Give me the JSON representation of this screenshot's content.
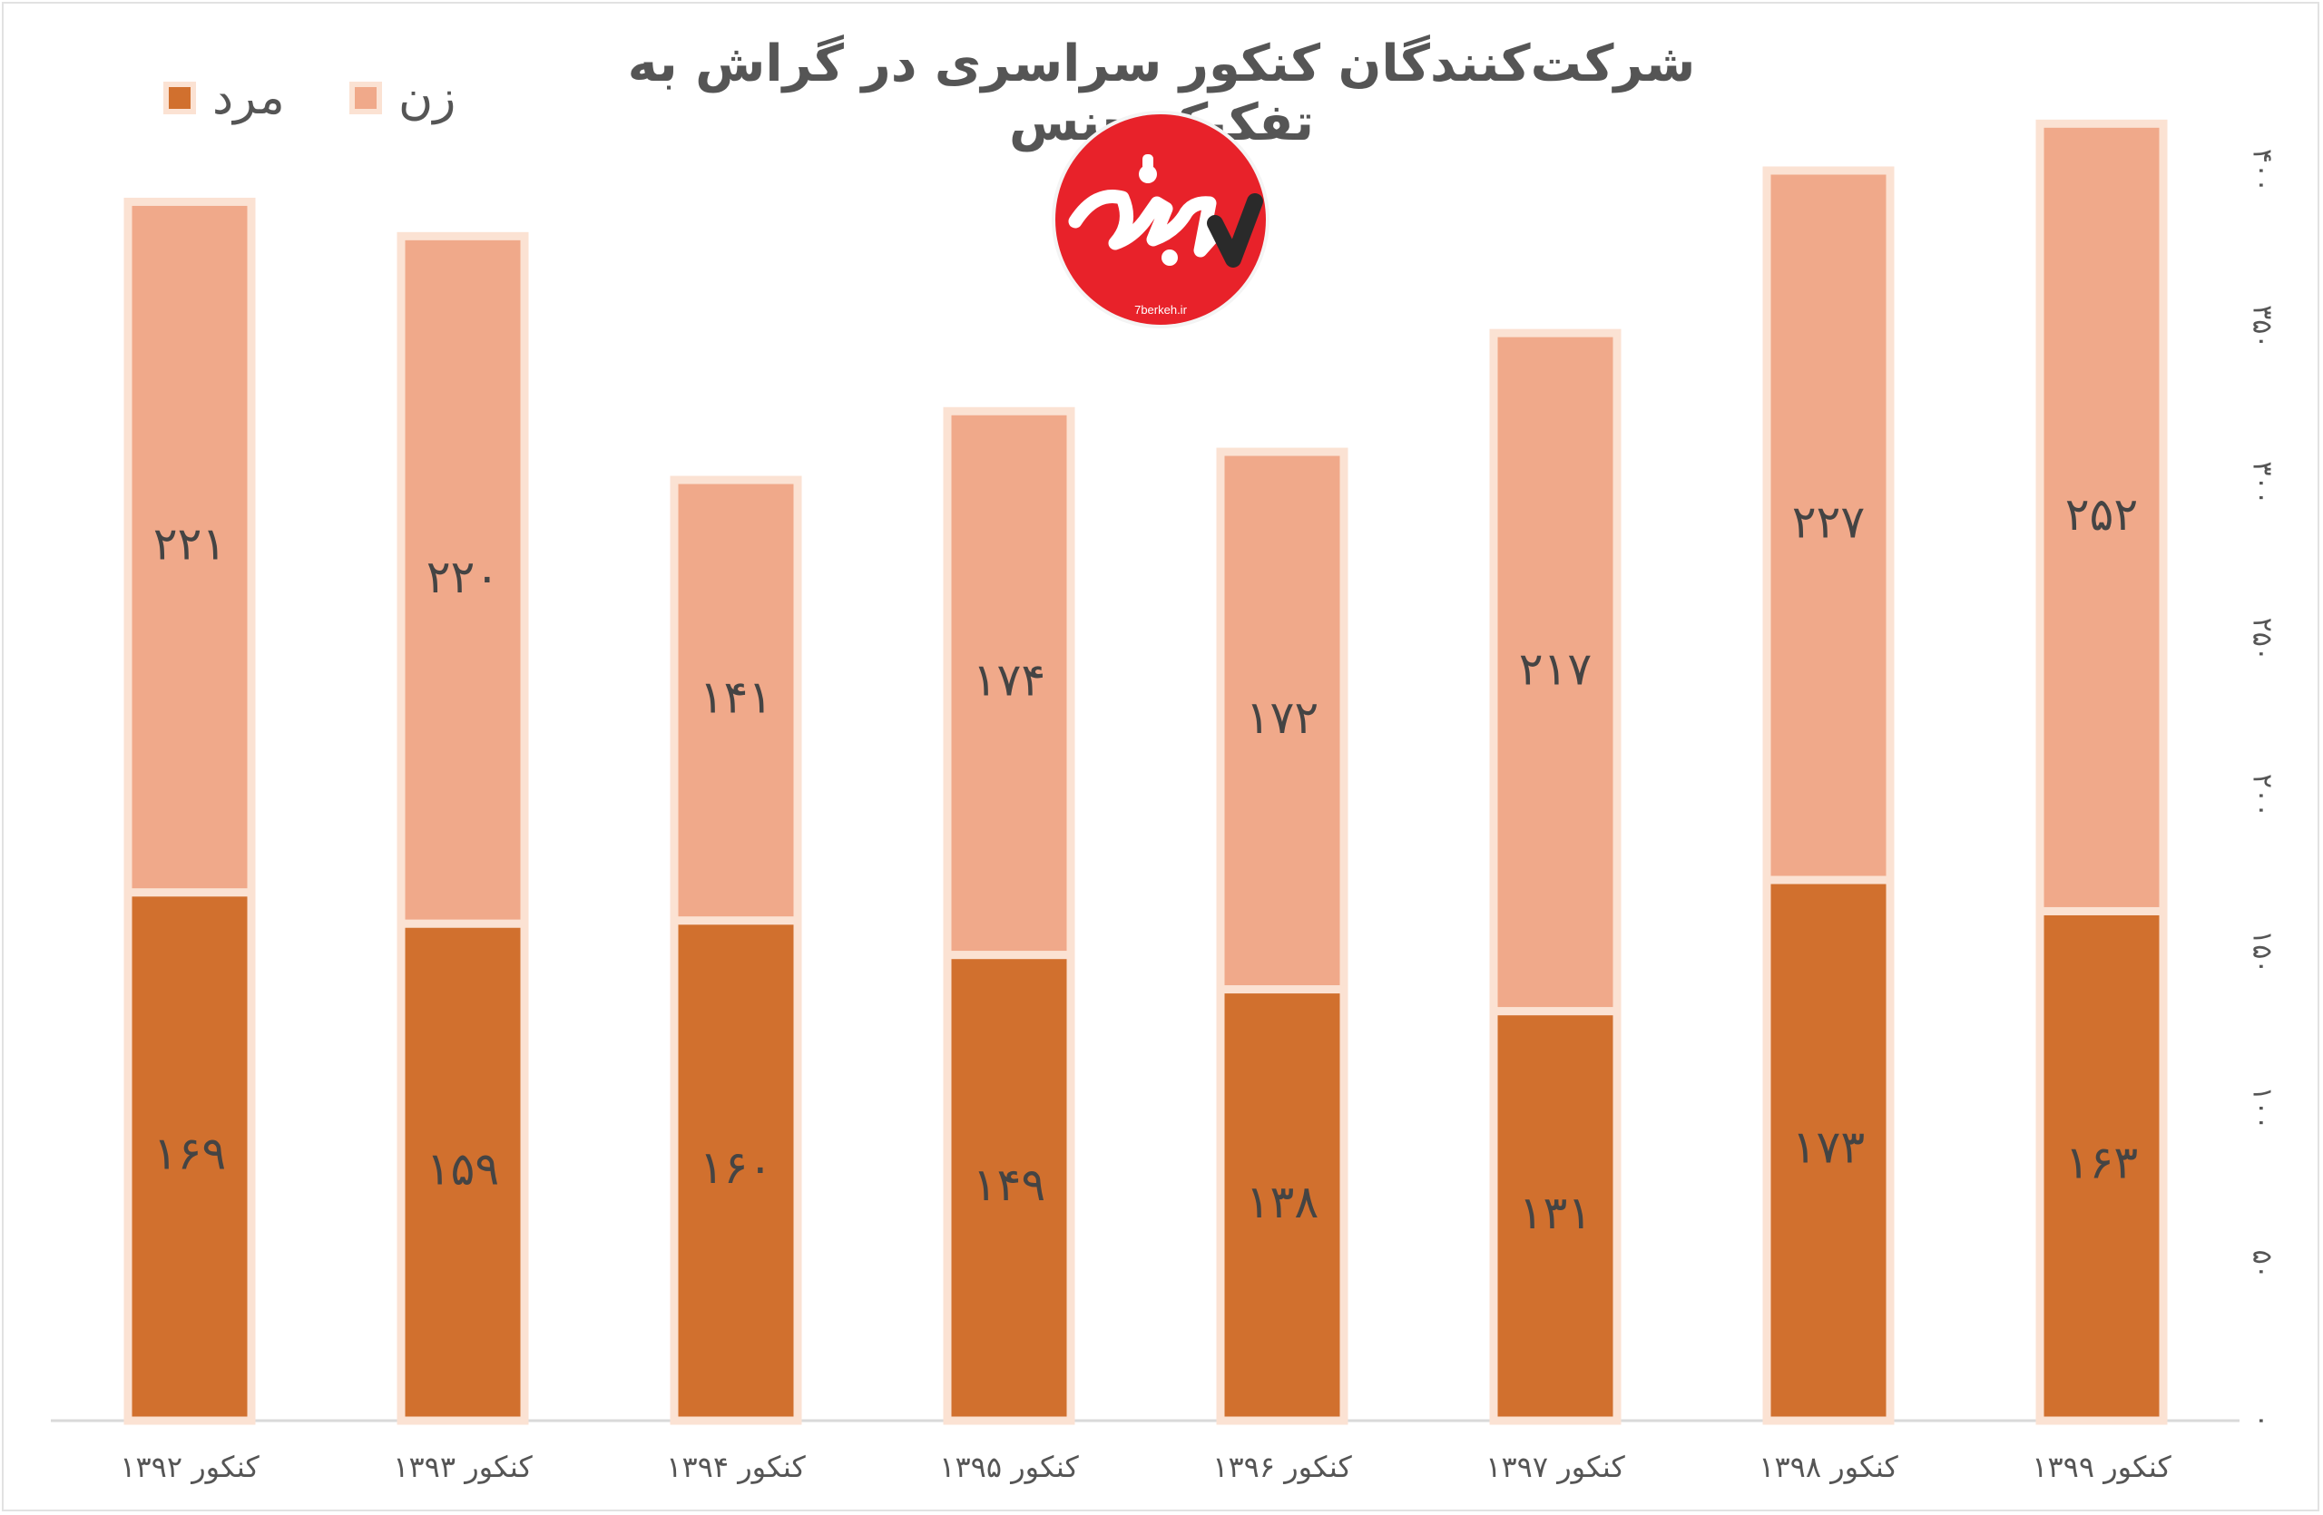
{
  "title": "شرکت‌کنندگان کنکور سراسری در گراش به تفکیک جنس",
  "legend": {
    "male": "مرد",
    "female": "زن"
  },
  "colors": {
    "male": "#d1702e",
    "female": "#f0a98a",
    "outline": "#fbe2d3",
    "axis": "#d9d9d9",
    "text": "#555555"
  },
  "watermark": {
    "url": "7berkeh.ir"
  },
  "chart_data": {
    "type": "bar",
    "stacked": true,
    "title": "شرکت‌کنندگان کنکور سراسری در گراش به تفکیک جنس",
    "categories": [
      "کنکور ۱۳۹۲",
      "کنکور ۱۳۹۳",
      "کنکور ۱۳۹۴",
      "کنکور ۱۳۹۵",
      "کنکور ۱۳۹۶",
      "کنکور ۱۳۹۷",
      "کنکور ۱۳۹۸",
      "کنکور ۱۳۹۹"
    ],
    "series": [
      {
        "name": "مرد",
        "values": [
          169,
          159,
          160,
          149,
          138,
          131,
          173,
          163
        ],
        "labels": [
          "۱۶۹",
          "۱۵۹",
          "۱۶۰",
          "۱۴۹",
          "۱۳۸",
          "۱۳۱",
          "۱۷۳",
          "۱۶۳"
        ]
      },
      {
        "name": "زن",
        "values": [
          221,
          220,
          141,
          174,
          172,
          217,
          227,
          252
        ],
        "labels": [
          "۲۲۱",
          "۲۲۰",
          "۱۴۱",
          "۱۷۴",
          "۱۷۲",
          "۲۱۷",
          "۲۲۷",
          "۲۵۲"
        ]
      }
    ],
    "ylim": [
      0,
      400
    ],
    "yticks": [
      0,
      50,
      100,
      150,
      200,
      250,
      300,
      350,
      400
    ],
    "ytick_labels": [
      "۰",
      "۵۰",
      "۱۰۰",
      "۱۵۰",
      "۲۰۰",
      "۲۵۰",
      "۳۰۰",
      "۳۵۰",
      "۴۰۰"
    ],
    "y_axis_side": "right",
    "legend_position": "top-left",
    "grid": false
  }
}
